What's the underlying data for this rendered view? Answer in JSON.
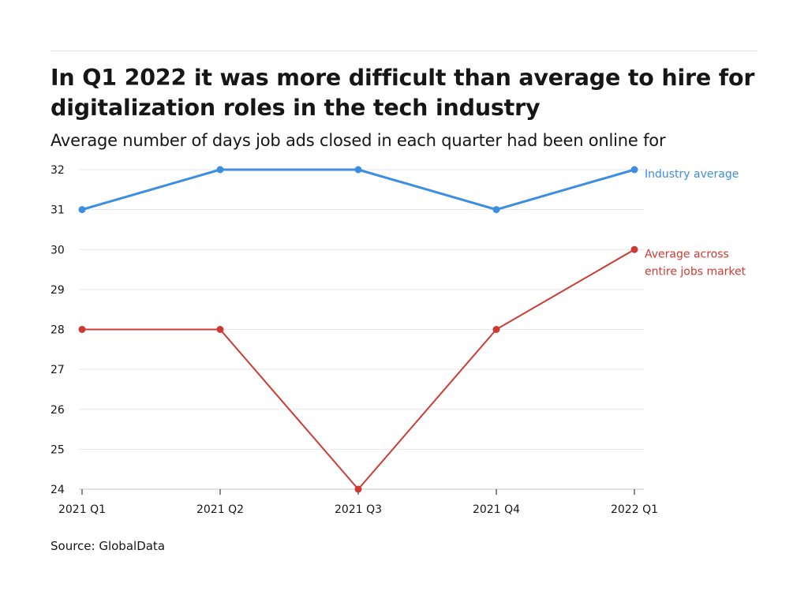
{
  "header": {
    "title": "In Q1 2022 it was more difficult than average to hire for digitalization roles in the tech industry",
    "subtitle": "Average number of days job ads closed in each quarter had been online for"
  },
  "footer": {
    "source": "Source: GlobalData"
  },
  "chart_data": {
    "type": "line",
    "title": "In Q1 2022 it was more difficult than average to hire for digitalization roles in the tech industry",
    "subtitle": "Average number of days job ads closed in each quarter had been online for",
    "xlabel": "",
    "ylabel": "",
    "categories": [
      "2021 Q1",
      "2021 Q2",
      "2021 Q3",
      "2021 Q4",
      "2022 Q1"
    ],
    "ylim": [
      24,
      32
    ],
    "yticks": [
      24,
      25,
      26,
      27,
      28,
      29,
      30,
      31,
      32
    ],
    "grid": true,
    "legend": "inline-right",
    "series": [
      {
        "name": "Industry average",
        "label_lines": [
          "Industry average"
        ],
        "values": [
          31,
          32,
          32,
          31,
          32
        ],
        "color": "#3d8ee0",
        "stroke_width": 3
      },
      {
        "name": "Average across entire jobs market",
        "label_lines": [
          "Average across",
          "entire jobs market"
        ],
        "values": [
          28,
          28,
          24,
          28,
          30
        ],
        "color": "#cc3b33",
        "stroke_width": 2
      }
    ]
  }
}
